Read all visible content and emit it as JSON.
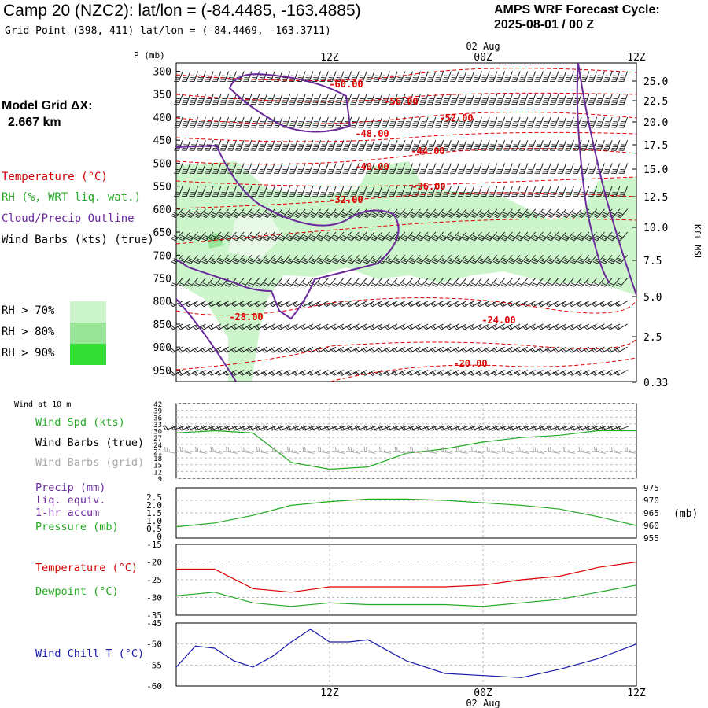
{
  "header": {
    "title": "Camp 20 (NZC2):  lat/lon = (-84.4485, -163.4885)",
    "subtitle": "Grid Point (398, 411) lat/lon = (-84.4469, -163.3711)",
    "cycle_label": "AMPS WRF Forecast Cycle:",
    "cycle_value": "2025-08-01 / 00  Z"
  },
  "left_panel": {
    "grid_label": "Model Grid ΔX:",
    "grid_value": "2.667 km",
    "legend": [
      {
        "text": "Temperature (°C)",
        "color": "#d00000"
      },
      {
        "text": "RH (%, WRT liq. wat.)",
        "color": "#22aa22"
      },
      {
        "text": "Cloud/Precip Outline",
        "color": "#6a2a9a"
      },
      {
        "text": "Wind Barbs (kts) (true)",
        "color": "#000000"
      }
    ],
    "rh_bins": [
      {
        "text": "RH > 70%",
        "color": "#ccf5cc"
      },
      {
        "text": "RH > 80%",
        "color": "#99e699"
      },
      {
        "text": "RH > 90%",
        "color": "#33dd33"
      }
    ]
  },
  "time_axis": {
    "ticks": [
      "12Z",
      "00Z",
      "12Z"
    ],
    "date_label": "02 Aug"
  },
  "colors": {
    "temperature": "#dd0000",
    "cloud_outline": "#6a2a9a",
    "rh": "#ccf5cc",
    "wind_speed": "#22aa22",
    "pressure": "#22aa22",
    "dewpoint": "#22aa22",
    "wind_chill": "#1a1aaa",
    "barbs_grid": "#aaaaaa"
  },
  "chart_data": [
    {
      "type": "heatmap",
      "ylabel": "P (mb)",
      "right_label": "Kft MSL",
      "y_ticks": [
        "300",
        "350",
        "400",
        "450",
        "500",
        "550",
        "600",
        "650",
        "700",
        "750",
        "800",
        "850",
        "900",
        "950"
      ],
      "right_ticks": [
        "25.0",
        "22.5",
        "20.0",
        "17.5",
        "15.0",
        "12.5",
        "10.0",
        "7.5",
        "5.0",
        "2.5",
        "0.33"
      ],
      "ylim": [
        300,
        975
      ],
      "temperature_labels": [
        "-60.00",
        "-56.00",
        "-52.00",
        "-48.00",
        "-44.00",
        "-40.00",
        "-36.00",
        "-32.00",
        "-28.00",
        "-24.00",
        "-20.00"
      ],
      "temperature_contours": [
        -60,
        -56,
        -52,
        -48,
        -44,
        -40,
        -36,
        -32,
        -28,
        -24,
        -20
      ]
    },
    {
      "type": "line",
      "title": "Wind at 10 m",
      "legend": [
        "Wind Spd (kts)",
        "Wind Barbs (true)",
        "Wind Barbs (grid)"
      ],
      "y_ticks": [
        "42",
        "39",
        "36",
        "33",
        "30",
        "27",
        "24",
        "21",
        "18",
        "15",
        "12",
        "9"
      ],
      "ylim": [
        9,
        42
      ],
      "x_hours": [
        0,
        3,
        6,
        9,
        12,
        15,
        18,
        21,
        24,
        27,
        30,
        33,
        36
      ],
      "series": [
        {
          "name": "Wind Spd (kts)",
          "values": [
            29,
            30,
            29,
            16,
            13,
            14,
            20,
            22,
            25,
            27,
            28,
            30,
            30
          ]
        }
      ]
    },
    {
      "type": "line",
      "legend": [
        "Precip (mm)",
        "liq. equiv.",
        "1-hr accum",
        "Pressure (mb)"
      ],
      "y_ticks": [
        "2.5",
        "2.0",
        "1.5",
        "1.0",
        "0.5",
        "0"
      ],
      "right_ticks": [
        "975",
        "970",
        "965",
        "960",
        "955"
      ],
      "right_unit": "(mb)",
      "ylim": [
        955,
        975
      ],
      "x_hours": [
        0,
        3,
        6,
        9,
        12,
        15,
        18,
        21,
        24,
        27,
        30,
        33,
        36
      ],
      "series": [
        {
          "name": "Pressure (mb)",
          "values": [
            959.5,
            961,
            964,
            968,
            969.5,
            970.5,
            970.5,
            970,
            969,
            968,
            966.5,
            963.5,
            960
          ]
        }
      ]
    },
    {
      "type": "line",
      "legend": [
        "Temperature (°C)",
        "Dewpoint (°C)"
      ],
      "y_ticks": [
        "-15",
        "-20",
        "-25",
        "-30",
        "-35"
      ],
      "ylim": [
        -35,
        -15
      ],
      "x_hours": [
        0,
        3,
        6,
        9,
        12,
        15,
        18,
        21,
        24,
        27,
        30,
        33,
        36
      ],
      "series": [
        {
          "name": "Temperature (°C)",
          "values": [
            -22,
            -22,
            -27.5,
            -28.5,
            -27,
            -27,
            -27,
            -27,
            -26.5,
            -25,
            -24,
            -21.5,
            -20
          ]
        },
        {
          "name": "Dewpoint (°C)",
          "values": [
            -29.5,
            -28.5,
            -31.5,
            -32.5,
            -31.5,
            -32,
            -32,
            -32,
            -32.5,
            -31.5,
            -30.5,
            -28.5,
            -26.5
          ]
        }
      ]
    },
    {
      "type": "line",
      "legend": [
        "Wind Chill T (°C)"
      ],
      "y_ticks": [
        "-45",
        "-50",
        "-55",
        "-60"
      ],
      "ylim": [
        -60,
        -45
      ],
      "x_hours": [
        0,
        1.5,
        3,
        4.5,
        6,
        7.5,
        9,
        10.5,
        12,
        13.5,
        15,
        18,
        21,
        24,
        27,
        30,
        33,
        36
      ],
      "series": [
        {
          "name": "Wind Chill T (°C)",
          "values": [
            -55.5,
            -50.5,
            -51,
            -54,
            -55.5,
            -53,
            -49.5,
            -46.5,
            -49.5,
            -49.5,
            -49,
            -54,
            -57,
            -57.5,
            -58,
            -56,
            -53.5,
            -50
          ]
        }
      ]
    }
  ]
}
